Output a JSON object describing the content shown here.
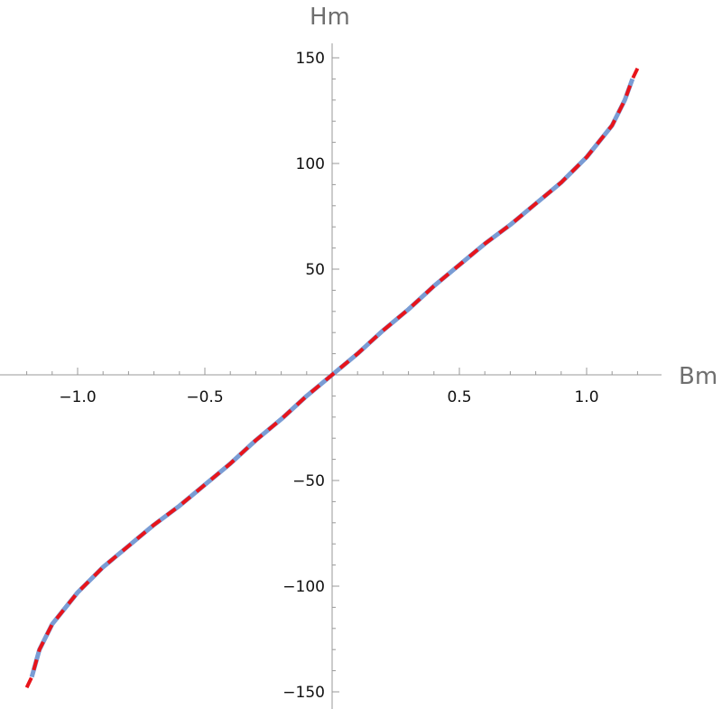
{
  "chart_data": {
    "type": "line",
    "xlabel": "Bm",
    "ylabel": "Hm",
    "xlim": [
      -1.22,
      1.22
    ],
    "ylim": [
      -153,
      155
    ],
    "x_ticks": [
      -1.0,
      -0.5,
      0.5,
      1.0
    ],
    "x_tick_labels": [
      "−1.0",
      "−0.5",
      "0.5",
      "1.0"
    ],
    "y_ticks": [
      -150,
      -100,
      -50,
      50,
      100,
      150
    ],
    "y_tick_labels": [
      "−150",
      "−100",
      "−50",
      "50",
      "100",
      "150"
    ],
    "grid": false,
    "legend": "none",
    "series": [
      {
        "style": "solid",
        "color": "#7a9cd4",
        "x": [
          -1.18,
          -1.15,
          -1.1,
          -1.0,
          -0.9,
          -0.8,
          -0.7,
          -0.6,
          -0.5,
          -0.4,
          -0.3,
          -0.2,
          -0.1,
          0.0,
          0.1,
          0.2,
          0.3,
          0.4,
          0.5,
          0.6,
          0.7,
          0.8,
          0.9,
          1.0,
          1.1,
          1.15,
          1.18
        ],
        "y": [
          -143,
          -130,
          -118,
          -103,
          -91,
          -81,
          -71,
          -62,
          -52,
          -42,
          -31,
          -21,
          -10,
          0,
          10,
          21,
          31,
          42,
          52,
          62,
          71,
          81,
          91,
          103,
          118,
          130,
          140
        ]
      },
      {
        "style": "dashed",
        "color": "#e8141b",
        "x": [
          -1.2,
          -1.18,
          -1.15,
          -1.1,
          -1.0,
          -0.9,
          -0.8,
          -0.7,
          -0.6,
          -0.5,
          -0.4,
          -0.3,
          -0.2,
          -0.1,
          0.0,
          0.1,
          0.2,
          0.3,
          0.4,
          0.5,
          0.6,
          0.7,
          0.8,
          0.9,
          1.0,
          1.1,
          1.15,
          1.18,
          1.2
        ],
        "y": [
          -148,
          -143,
          -130,
          -118,
          -103,
          -91,
          -81,
          -71,
          -62,
          -52,
          -42,
          -31,
          -21,
          -10,
          0,
          10,
          21,
          31,
          42,
          52,
          62,
          71,
          81,
          91,
          103,
          118,
          130,
          140,
          145
        ]
      }
    ]
  }
}
